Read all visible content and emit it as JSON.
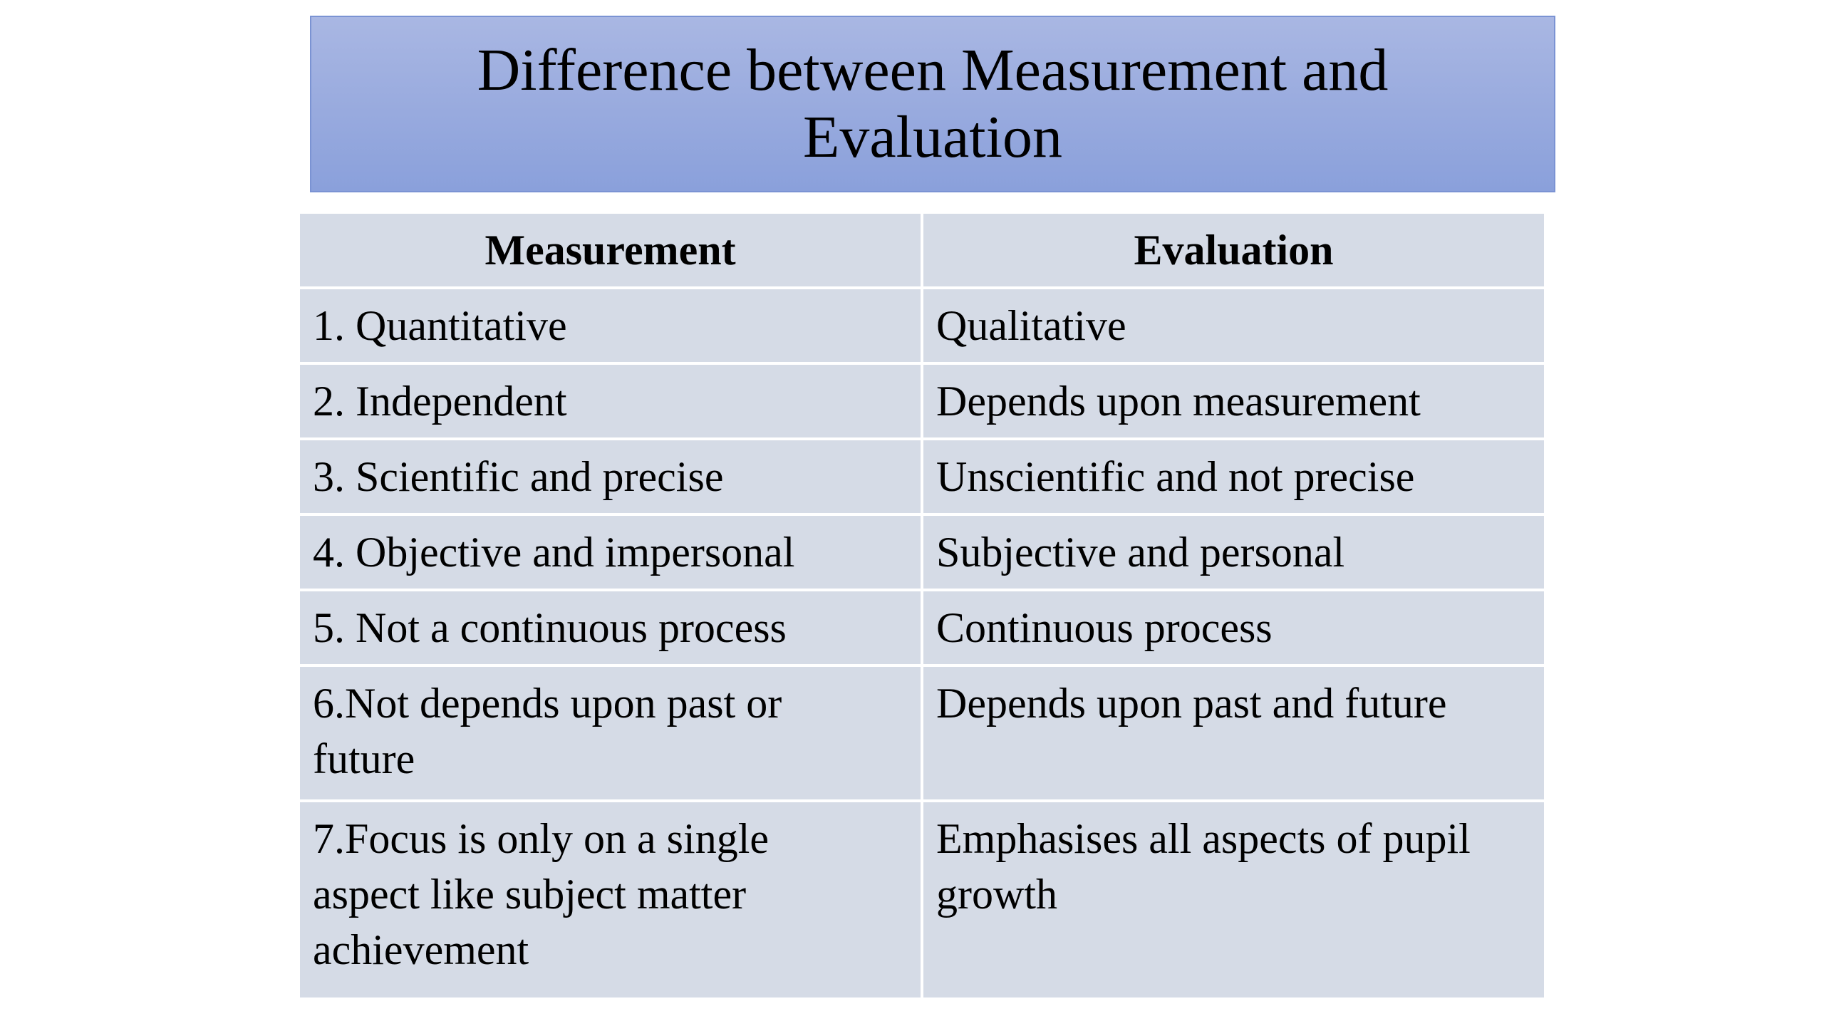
{
  "slide": {
    "title": "Difference between Measurement and\nEvaluation"
  },
  "table": {
    "headers": [
      "Measurement",
      "Evaluation"
    ],
    "rows": [
      [
        "1.  Quantitative",
        "Qualitative"
      ],
      [
        "2. Independent",
        "Depends upon measurement"
      ],
      [
        "3. Scientific and precise",
        "Unscientific and not precise"
      ],
      [
        "4. Objective and impersonal",
        "Subjective and personal"
      ],
      [
        "5. Not a continuous process",
        "Continuous process"
      ],
      [
        "6.Not depends upon past or\nfuture",
        "Depends upon past and future"
      ],
      [
        "7.Focus is only on a single\naspect  like subject matter\nachievement",
        "Emphasises all aspects of pupil\ngrowth"
      ]
    ]
  },
  "colors": {
    "title_gradient_top": "#a9b7e3",
    "title_gradient_bottom": "#8aa0db",
    "title_border": "#7b93d3",
    "table_cell_bg": "#d5dbe6",
    "table_grid": "#ffffff"
  }
}
